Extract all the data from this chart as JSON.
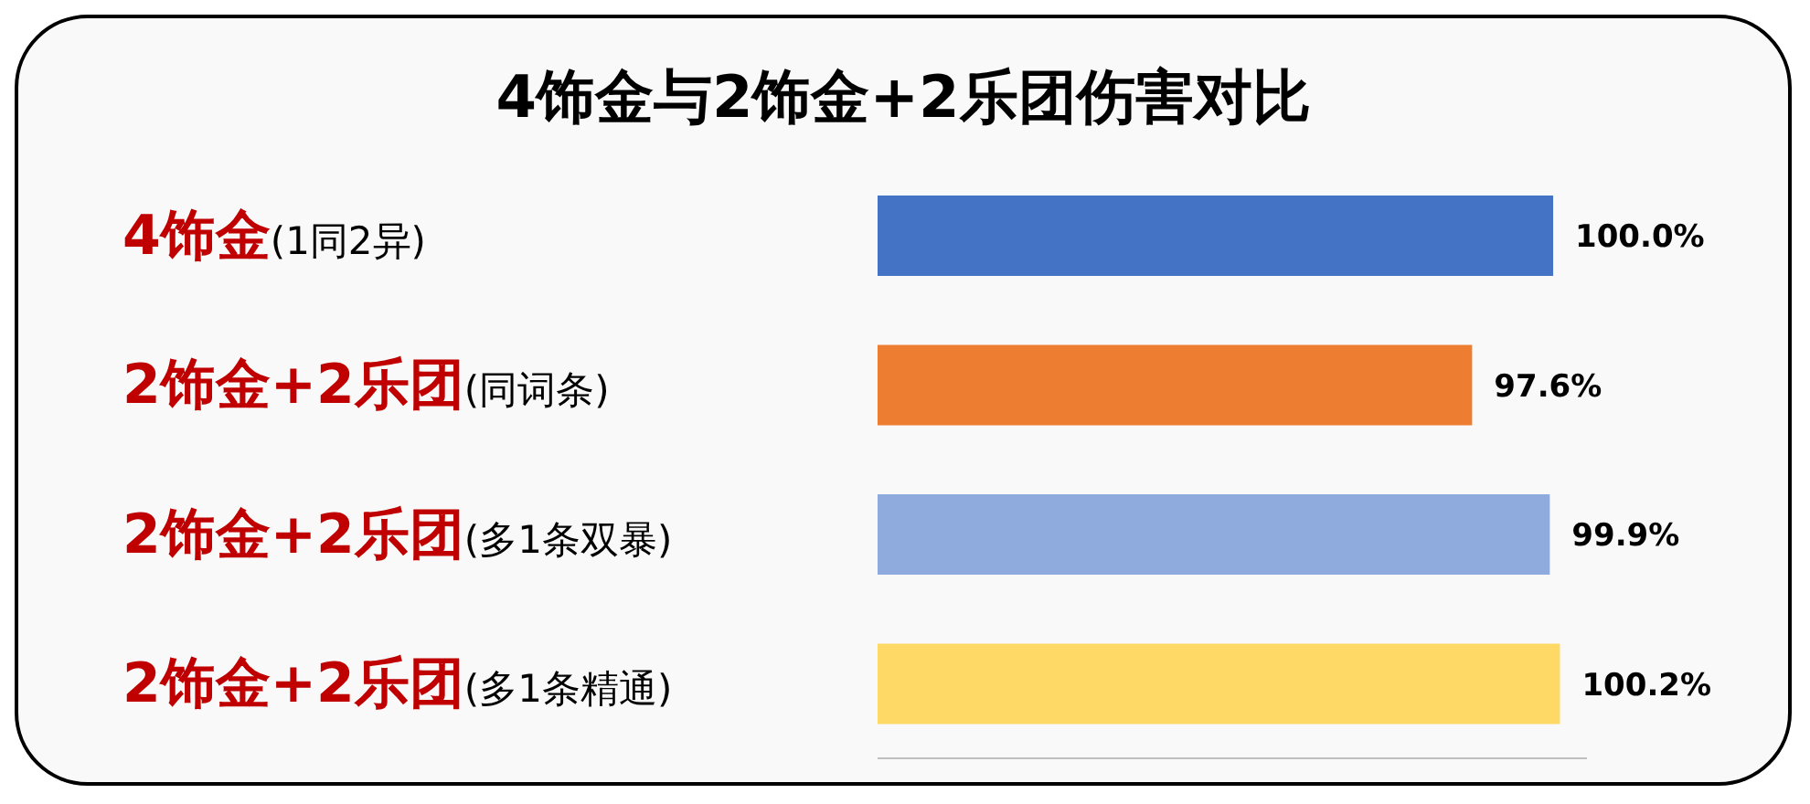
{
  "chart_data": {
    "type": "bar",
    "orientation": "horizontal",
    "title": "4饰金与2饰金+2乐团伤害对比",
    "categories": [
      "4饰金(1同2异)",
      "2饰金+2乐团(同词条)",
      "2饰金+2乐团(多1条双暴)",
      "2饰金+2乐团(多1条精通)"
    ],
    "values": [
      100.0,
      97.6,
      99.9,
      100.2
    ],
    "colors": [
      "#4472c4",
      "#ed7d31",
      "#8faadc",
      "#ffd966"
    ],
    "value_labels": [
      "100.0%",
      "97.6%",
      "99.9%",
      "100.2%"
    ],
    "xlim": [
      80,
      101
    ],
    "tick_labels": "y"
  }
}
